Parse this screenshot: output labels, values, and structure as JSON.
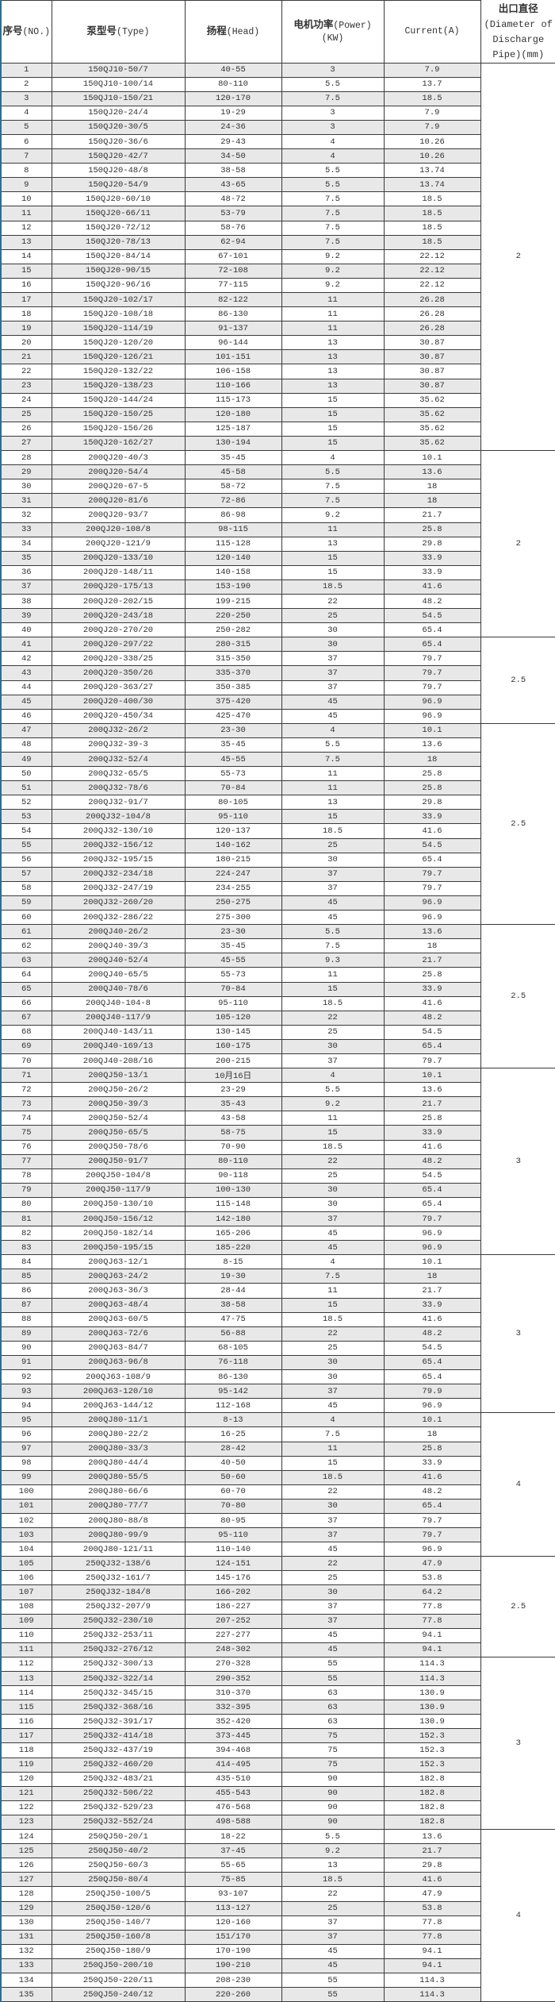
{
  "header": {
    "no_cn": "序号",
    "no_en": "(NO.)",
    "type_cn": "泵型号",
    "type_en": "(Type)",
    "head_cn": "扬程",
    "head_en": "(Head)",
    "power_cn": "电机功率",
    "power_en": "(Power)",
    "power_unit": "(KW)",
    "current": "Current(A)",
    "diameter_cn": "出口直径",
    "diameter_en": "(Diameter of Discharge Pipe)(mm)"
  },
  "rows": [
    [
      "1",
      "150QJ10-50/7",
      "40-55",
      "3",
      "7.9"
    ],
    [
      "2",
      "150QJ10-100/14",
      "80-110",
      "5.5",
      "13.7"
    ],
    [
      "3",
      "150QJ10-150/21",
      "120-170",
      "7.5",
      "18.5"
    ],
    [
      "4",
      "150QJ20-24/4",
      "19-29",
      "3",
      "7.9"
    ],
    [
      "5",
      "150QJ20-30/5",
      "24-36",
      "3",
      "7.9"
    ],
    [
      "6",
      "150QJ20-36/6",
      "29-43",
      "4",
      "10.26"
    ],
    [
      "7",
      "150QJ20-42/7",
      "34-50",
      "4",
      "10.26"
    ],
    [
      "8",
      "150QJ20-48/8",
      "38-58",
      "5.5",
      "13.74"
    ],
    [
      "9",
      "150QJ20-54/9",
      "43-65",
      "5.5",
      "13.74"
    ],
    [
      "10",
      "150QJ20-60/10",
      "48-72",
      "7.5",
      "18.5"
    ],
    [
      "11",
      "150QJ20-66/11",
      "53-79",
      "7.5",
      "18.5"
    ],
    [
      "12",
      "150QJ20-72/12",
      "58-76",
      "7.5",
      "18.5"
    ],
    [
      "13",
      "150QJ20-78/13",
      "62-94",
      "7.5",
      "18.5"
    ],
    [
      "14",
      "150QJ20-84/14",
      "67-101",
      "9.2",
      "22.12"
    ],
    [
      "15",
      "150QJ20-90/15",
      "72-108",
      "9.2",
      "22.12"
    ],
    [
      "16",
      "150QJ20-96/16",
      "77-115",
      "9.2",
      "22.12"
    ],
    [
      "17",
      "150QJ20-102/17",
      "82-122",
      "11",
      "26.28"
    ],
    [
      "18",
      "150QJ20-108/18",
      "86-130",
      "11",
      "26.28"
    ],
    [
      "19",
      "150QJ20-114/19",
      "91-137",
      "11",
      "26.28"
    ],
    [
      "20",
      "150QJ20-120/20",
      "96-144",
      "13",
      "30.87"
    ],
    [
      "21",
      "150QJ20-126/21",
      "101-151",
      "13",
      "30.87"
    ],
    [
      "22",
      "150QJ20-132/22",
      "106-158",
      "13",
      "30.87"
    ],
    [
      "23",
      "150QJ20-138/23",
      "110-166",
      "13",
      "30.87"
    ],
    [
      "24",
      "150QJ20-144/24",
      "115-173",
      "15",
      "35.62"
    ],
    [
      "25",
      "150QJ20-150/25",
      "120-180",
      "15",
      "35.62"
    ],
    [
      "26",
      "150QJ20-156/26",
      "125-187",
      "15",
      "35.62"
    ],
    [
      "27",
      "150QJ20-162/27",
      "130-194",
      "15",
      "35.62"
    ],
    [
      "28",
      "200QJ20-40/3",
      "35-45",
      "4",
      "10.1"
    ],
    [
      "29",
      "200QJ20-54/4",
      "45-58",
      "5.5",
      "13.6"
    ],
    [
      "30",
      "200QJ20-67-5",
      "58-72",
      "7.5",
      "18"
    ],
    [
      "31",
      "200QJ20-81/6",
      "72-86",
      "7.5",
      "18"
    ],
    [
      "32",
      "200QJ20-93/7",
      "86-98",
      "9.2",
      "21.7"
    ],
    [
      "33",
      "200QJ20-108/8",
      "98-115",
      "11",
      "25.8"
    ],
    [
      "34",
      "200QJ20-121/9",
      "115-128",
      "13",
      "29.8"
    ],
    [
      "35",
      "200QJ20-133/10",
      "120-140",
      "15",
      "33.9"
    ],
    [
      "36",
      "200QJ20-148/11",
      "140-158",
      "15",
      "33.9"
    ],
    [
      "37",
      "200QJ20-175/13",
      "153-190",
      "18.5",
      "41.6"
    ],
    [
      "38",
      "200QJ20-202/15",
      "199-215",
      "22",
      "48.2"
    ],
    [
      "39",
      "200QJ20-243/18",
      "220-250",
      "25",
      "54.5"
    ],
    [
      "40",
      "200QJ20-270/20",
      "250-282",
      "30",
      "65.4"
    ],
    [
      "41",
      "200QJ20-297/22",
      "280-315",
      "30",
      "65.4"
    ],
    [
      "42",
      "200QJ20-338/25",
      "315-350",
      "37",
      "79.7"
    ],
    [
      "43",
      "200QJ20-350/26",
      "335-370",
      "37",
      "79.7"
    ],
    [
      "44",
      "200QJ20-363/27",
      "350-385",
      "37",
      "79.7"
    ],
    [
      "45",
      "200QJ20-400/30",
      "375-420",
      "45",
      "96.9"
    ],
    [
      "46",
      "200QJ20-450/34",
      "425-470",
      "45",
      "96.9"
    ],
    [
      "47",
      "200QJ32-26/2",
      "23-30",
      "4",
      "10.1"
    ],
    [
      "48",
      "200QJ32-39-3",
      "35-45",
      "5.5",
      "13.6"
    ],
    [
      "49",
      "200QJ32-52/4",
      "45-55",
      "7.5",
      "18"
    ],
    [
      "50",
      "200QJ32-65/5",
      "55-73",
      "11",
      "25.8"
    ],
    [
      "51",
      "200QJ32-78/6",
      "70-84",
      "11",
      "25.8"
    ],
    [
      "52",
      "200QJ32-91/7",
      "80-105",
      "13",
      "29.8"
    ],
    [
      "53",
      "200QJ32-104/8",
      "95-110",
      "15",
      "33.9"
    ],
    [
      "54",
      "200QJ32-130/10",
      "120-137",
      "18.5",
      "41.6"
    ],
    [
      "55",
      "200QJ32-156/12",
      "140-162",
      "25",
      "54.5"
    ],
    [
      "56",
      "200QJ32-195/15",
      "180-215",
      "30",
      "65.4"
    ],
    [
      "57",
      "200QJ32-234/18",
      "224-247",
      "37",
      "79.7"
    ],
    [
      "58",
      "200QJ32-247/19",
      "234-255",
      "37",
      "79.7"
    ],
    [
      "59",
      "200QJ32-260/20",
      "250-275",
      "45",
      "96.9"
    ],
    [
      "60",
      "200QJ32-286/22",
      "275-300",
      "45",
      "96.9"
    ],
    [
      "61",
      "200QJ40-26/2",
      "23-30",
      "5.5",
      "13.6"
    ],
    [
      "62",
      "200QJ40-39/3",
      "35-45",
      "7.5",
      "18"
    ],
    [
      "63",
      "200QJ40-52/4",
      "45-55",
      "9.3",
      "21.7"
    ],
    [
      "64",
      "200QJ40-65/5",
      "55-73",
      "11",
      "25.8"
    ],
    [
      "65",
      "200QJ40-78/6",
      "70-84",
      "15",
      "33.9"
    ],
    [
      "66",
      "200QJ40-104-8",
      "95-110",
      "18.5",
      "41.6"
    ],
    [
      "67",
      "200QJ40-117/9",
      "105-120",
      "22",
      "48.2"
    ],
    [
      "68",
      "200QJ40-143/11",
      "130-145",
      "25",
      "54.5"
    ],
    [
      "69",
      "200QJ40-169/13",
      "160-175",
      "30",
      "65.4"
    ],
    [
      "70",
      "200QJ40-208/16",
      "200-215",
      "37",
      "79.7"
    ],
    [
      "71",
      "200QJ50-13/1",
      "10月16日",
      "4",
      "10.1"
    ],
    [
      "72",
      "200QJ50-26/2",
      "23-29",
      "5.5",
      "13.6"
    ],
    [
      "73",
      "200QJ50-39/3",
      "35-43",
      "9.2",
      "21.7"
    ],
    [
      "74",
      "200QJ50-52/4",
      "43-58",
      "11",
      "25.8"
    ],
    [
      "75",
      "200QJ50-65/5",
      "58-75",
      "15",
      "33.9"
    ],
    [
      "76",
      "200QJ50-78/6",
      "70-90",
      "18.5",
      "41.6"
    ],
    [
      "77",
      "200QJ50-91/7",
      "80-110",
      "22",
      "48.2"
    ],
    [
      "78",
      "200QJ50-104/8",
      "90-118",
      "25",
      "54.5"
    ],
    [
      "79",
      "200QJ50-117/9",
      "100-130",
      "30",
      "65.4"
    ],
    [
      "80",
      "200QJ50-130/10",
      "115-148",
      "30",
      "65.4"
    ],
    [
      "81",
      "200QJ50-156/12",
      "142-180",
      "37",
      "79.7"
    ],
    [
      "82",
      "200QJ50-182/14",
      "165-206",
      "45",
      "96.9"
    ],
    [
      "83",
      "200QJ50-195/15",
      "185-220",
      "45",
      "96.9"
    ],
    [
      "84",
      "200QJ63-12/1",
      "8-15",
      "4",
      "10.1"
    ],
    [
      "85",
      "200QJ63-24/2",
      "19-30",
      "7.5",
      "18"
    ],
    [
      "86",
      "200QJ63-36/3",
      "28-44",
      "11",
      "21.7"
    ],
    [
      "87",
      "200QJ63-48/4",
      "38-58",
      "15",
      "33.9"
    ],
    [
      "88",
      "200QJ63-60/5",
      "47-75",
      "18.5",
      "41.6"
    ],
    [
      "89",
      "200QJ63-72/6",
      "56-88",
      "22",
      "48.2"
    ],
    [
      "90",
      "200QJ63-84/7",
      "68-105",
      "25",
      "54.5"
    ],
    [
      "91",
      "200QJ63-96/8",
      "76-118",
      "30",
      "65.4"
    ],
    [
      "92",
      "200QJ63-108/9",
      "86-130",
      "30",
      "65.4"
    ],
    [
      "93",
      "200QJ63-120/10",
      "95-142",
      "37",
      "79.9"
    ],
    [
      "94",
      "200QJ63-144/12",
      "112-168",
      "45",
      "96.9"
    ],
    [
      "95",
      "200QJ80-11/1",
      "8-13",
      "4",
      "10.1"
    ],
    [
      "96",
      "200QJ80-22/2",
      "16-25",
      "7.5",
      "18"
    ],
    [
      "97",
      "200QJ80-33/3",
      "28-42",
      "11",
      "25.8"
    ],
    [
      "98",
      "200QJ80-44/4",
      "40-50",
      "15",
      "33.9"
    ],
    [
      "99",
      "200QJ80-55/5",
      "50-60",
      "18.5",
      "41.6"
    ],
    [
      "100",
      "200QJ80-66/6",
      "60-70",
      "22",
      "48.2"
    ],
    [
      "101",
      "200QJ80-77/7",
      "70-80",
      "30",
      "65.4"
    ],
    [
      "102",
      "200QJ80-88/8",
      "80-95",
      "37",
      "79.7"
    ],
    [
      "103",
      "200QJ80-99/9",
      "95-110",
      "37",
      "79.7"
    ],
    [
      "104",
      "200QJ80-121/11",
      "110-140",
      "45",
      "96.9"
    ],
    [
      "105",
      "250QJ32-138/6",
      "124-151",
      "22",
      "47.9"
    ],
    [
      "106",
      "250QJ32-161/7",
      "145-176",
      "25",
      "53.8"
    ],
    [
      "107",
      "250QJ32-184/8",
      "166-202",
      "30",
      "64.2"
    ],
    [
      "108",
      "250QJ32-207/9",
      "186-227",
      "37",
      "77.8"
    ],
    [
      "109",
      "250QJ32-230/10",
      "207-252",
      "37",
      "77.8"
    ],
    [
      "110",
      "250QJ32-253/11",
      "227-277",
      "45",
      "94.1"
    ],
    [
      "111",
      "250QJ32-276/12",
      "248-302",
      "45",
      "94.1"
    ],
    [
      "112",
      "250QJ32-300/13",
      "270-328",
      "55",
      "114.3"
    ],
    [
      "113",
      "250QJ32-322/14",
      "290-352",
      "55",
      "114.3"
    ],
    [
      "114",
      "250QJ32-345/15",
      "310-370",
      "63",
      "130.9"
    ],
    [
      "115",
      "250QJ32-368/16",
      "332-395",
      "63",
      "130.9"
    ],
    [
      "116",
      "250QJ32-391/17",
      "352-420",
      "63",
      "130.9"
    ],
    [
      "117",
      "250QJ32-414/18",
      "373-445",
      "75",
      "152.3"
    ],
    [
      "118",
      "250QJ32-437/19",
      "394-468",
      "75",
      "152.3"
    ],
    [
      "119",
      "250QJ32-460/20",
      "414-495",
      "75",
      "152.3"
    ],
    [
      "120",
      "250QJ32-483/21",
      "435-510",
      "90",
      "182.8"
    ],
    [
      "121",
      "250QJ32-506/22",
      "455-543",
      "90",
      "182.8"
    ],
    [
      "122",
      "250QJ32-529/23",
      "476-568",
      "90",
      "182.8"
    ],
    [
      "123",
      "250QJ32-552/24",
      "498-588",
      "90",
      "182.8"
    ],
    [
      "124",
      "250QJ50-20/1",
      "18-22",
      "5.5",
      "13.6"
    ],
    [
      "125",
      "250QJ50-40/2",
      "37-45",
      "9.2",
      "21.7"
    ],
    [
      "126",
      "250QJ50-60/3",
      "55-65",
      "13",
      "29.8"
    ],
    [
      "127",
      "250QJ50-80/4",
      "75-85",
      "18.5",
      "41.6"
    ],
    [
      "128",
      "250QJ50-100/5",
      "93-107",
      "22",
      "47.9"
    ],
    [
      "129",
      "250QJ50-120/6",
      "113-127",
      "25",
      "53.8"
    ],
    [
      "130",
      "250QJ50-140/7",
      "120-160",
      "37",
      "77.8"
    ],
    [
      "131",
      "250QJ50-160/8",
      "151/170",
      "37",
      "77.8"
    ],
    [
      "132",
      "250QJ50-180/9",
      "170-190",
      "45",
      "94.1"
    ],
    [
      "133",
      "250QJ50-200/10",
      "190-210",
      "45",
      "94.1"
    ],
    [
      "134",
      "250QJ50-220/11",
      "208-230",
      "55",
      "114.3"
    ],
    [
      "135",
      "250QJ50-240/12",
      "220-260",
      "55",
      "114.3"
    ]
  ],
  "diameter_groups": [
    {
      "first_no": 1,
      "last_no": 27,
      "value": "2"
    },
    {
      "first_no": 28,
      "last_no": 40,
      "value": "2"
    },
    {
      "first_no": 41,
      "last_no": 46,
      "value": "2.5"
    },
    {
      "first_no": 47,
      "last_no": 60,
      "value": "2.5"
    },
    {
      "first_no": 61,
      "last_no": 70,
      "value": "2.5"
    },
    {
      "first_no": 71,
      "last_no": 83,
      "value": "3"
    },
    {
      "first_no": 84,
      "last_no": 94,
      "value": "3"
    },
    {
      "first_no": 95,
      "last_no": 104,
      "value": "4"
    },
    {
      "first_no": 105,
      "last_no": 111,
      "value": "2.5"
    },
    {
      "first_no": 112,
      "last_no": 123,
      "value": "3"
    },
    {
      "first_no": 124,
      "last_no": 135,
      "value": "4"
    }
  ],
  "colors": {
    "row_alt": "#e8e8e8",
    "border": "#3a3a3a",
    "left_edge": "#2a6f97"
  }
}
